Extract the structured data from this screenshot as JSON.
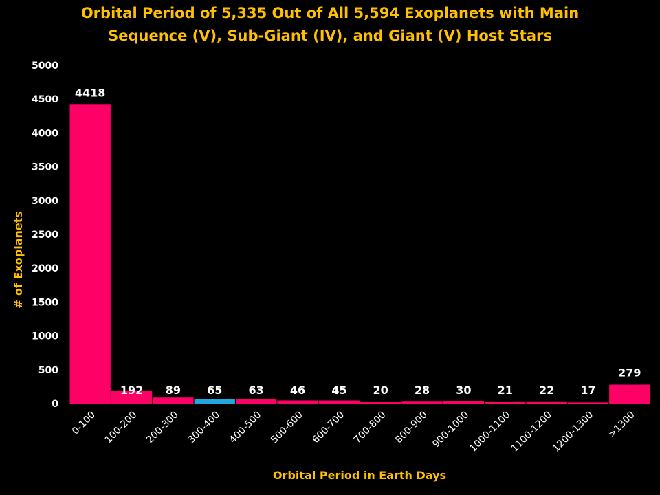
{
  "colors": {
    "background": "#000000",
    "bar": "#FF0066",
    "highlight_bar": "#1FA8E0",
    "title": "#FFC000",
    "tick_text": "#FFFFFF"
  },
  "chart_data": {
    "type": "bar",
    "title_lines": [
      "Orbital Period of 5,335 Out of All 5,594 Exoplanets with Main",
      "Sequence (V), Sub-Giant (IV), and Giant (V) Host Stars"
    ],
    "xlabel": "Orbital  Period  in Earth Days",
    "ylabel": "# of Exoplanets",
    "categories": [
      "0-100",
      "100-200",
      "200-300",
      "300-400",
      "400-500",
      "500-600",
      "600-700",
      "700-800",
      "800-900",
      "900-1000",
      "1000-1100",
      "1100-1200",
      "1200-1300",
      ">1300"
    ],
    "values": [
      4418,
      192,
      89,
      65,
      63,
      46,
      45,
      20,
      28,
      30,
      21,
      22,
      17,
      279
    ],
    "highlight_index": 3,
    "ylim": [
      0,
      5000
    ],
    "yticks": [
      0,
      500,
      1000,
      1500,
      2000,
      2500,
      3000,
      3500,
      4000,
      4500,
      5000
    ],
    "grid": false,
    "legend": "none"
  }
}
